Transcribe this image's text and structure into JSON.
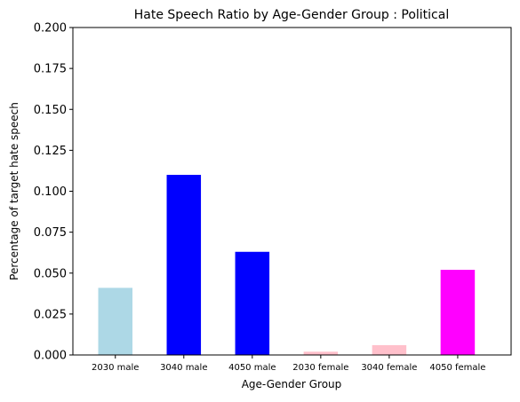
{
  "chart_data": {
    "type": "bar",
    "title": "Hate Speech Ratio by Age-Gender Group : Political",
    "xlabel": "Age-Gender Group",
    "ylabel": "Percentage of target hate speech",
    "categories": [
      "2030 male",
      "3040 male",
      "4050 male",
      "2030 female",
      "3040 female",
      "4050 female"
    ],
    "values": [
      0.041,
      0.11,
      0.063,
      0.002,
      0.006,
      0.052
    ],
    "colors": [
      "#add8e6",
      "#0000ff",
      "#0000ff",
      "#ffc0cb",
      "#ffc0cb",
      "#ff00ff"
    ],
    "ylim": [
      0,
      0.2
    ],
    "yticks": [
      "0.000",
      "0.025",
      "0.050",
      "0.075",
      "0.100",
      "0.125",
      "0.150",
      "0.175",
      "0.200"
    ],
    "grid": false,
    "legend": "none"
  }
}
